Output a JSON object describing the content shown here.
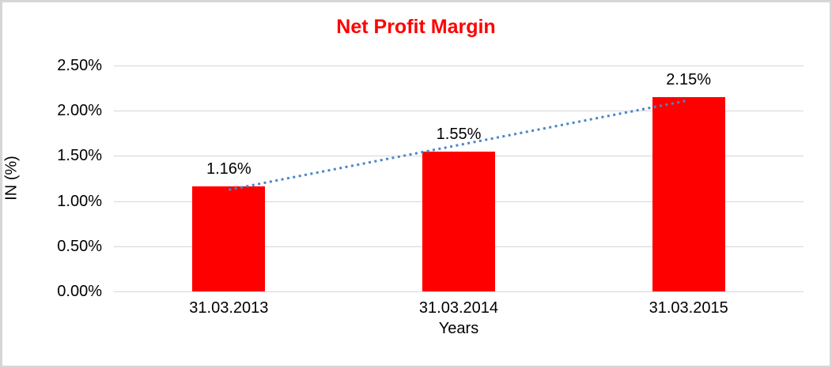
{
  "chart_data": {
    "type": "bar",
    "title": "Net Profit Margin",
    "categories": [
      "31.03.2013",
      "31.03.2014",
      "31.03.2015"
    ],
    "values": [
      1.16,
      1.55,
      2.15
    ],
    "data_labels": [
      "1.16%",
      "1.55%",
      "2.15%"
    ],
    "xlabel": "Years",
    "ylabel": "IN (%)",
    "ylim": [
      0,
      2.5
    ],
    "ytick_step": 0.5,
    "ytick_labels": [
      "0.00%",
      "0.50%",
      "1.00%",
      "1.50%",
      "2.00%",
      "2.50%"
    ],
    "grid": true,
    "legend": "none",
    "trendline": "linear",
    "colors": {
      "bar": "#ff0000",
      "title": "#ff0000",
      "trendline": "#4a86c8",
      "gridline": "#d6d6d6",
      "text": "#000000",
      "frame_border": "#d6d6d6"
    }
  }
}
